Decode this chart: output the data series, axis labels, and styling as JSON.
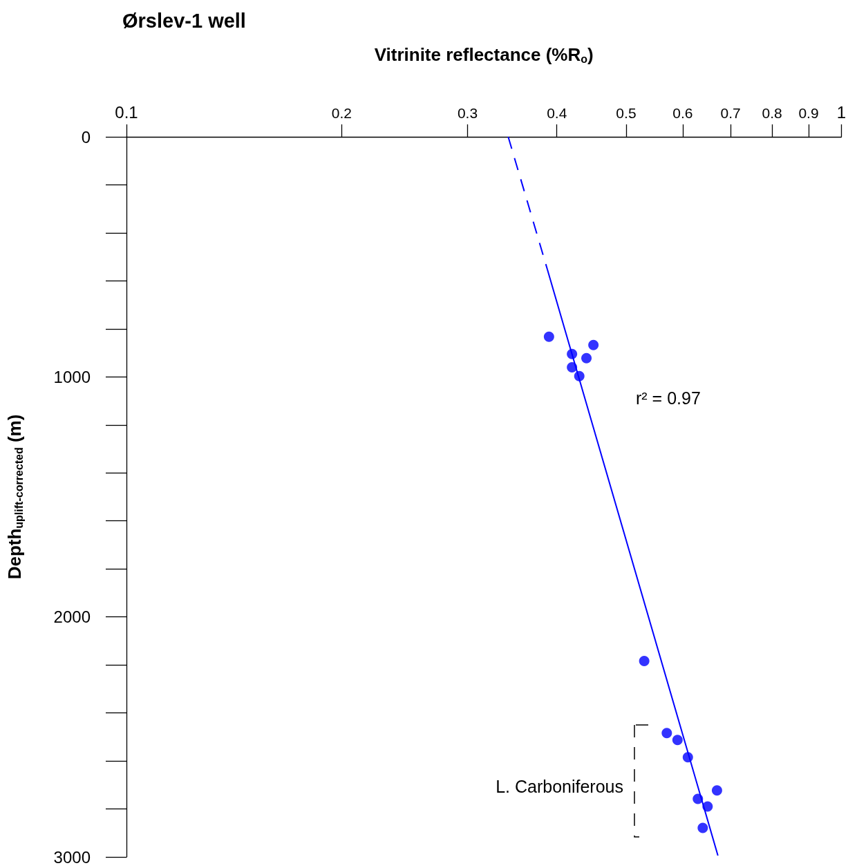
{
  "chart_data": {
    "type": "scatter",
    "title": "Ørslev-1 well",
    "xlabel": "Vitrinite reflectance (%R$_{o}$)",
    "ylabel": "Depth$_{uplift-corrected}$ (m)",
    "log": "x",
    "xlim": [
      0.1,
      1
    ],
    "xticks": [
      0.1,
      0.2,
      0.3,
      0.4,
      0.5,
      0.6,
      0.7,
      0.8,
      0.9,
      1
    ],
    "ylim": [
      3000,
      0
    ],
    "yticks": [
      0,
      1000,
      2000,
      3000
    ],
    "grid": false,
    "series": [
      {
        "type": "scatter",
        "marker": "circle",
        "color": "#0000ff",
        "x": [
          0.39,
          0.42,
          0.44,
          0.45,
          0.42,
          0.43,
          0.53,
          0.57,
          0.59,
          0.61,
          0.63,
          0.65,
          0.67,
          0.64
        ],
        "values": [
          833,
          905,
          922,
          867,
          960,
          997,
          2184,
          2484,
          2513,
          2585,
          2758,
          2790,
          2723,
          2879
        ]
      },
      {
        "type": "line",
        "marker": "none",
        "line_style": "solid",
        "color": "#0000ff",
        "x": [
          0.388,
          0.672
        ],
        "values": [
          553,
          2994
        ]
      },
      {
        "type": "line",
        "marker": "none",
        "line_style": "dashed",
        "color": "#0000ff",
        "x": [
          0.342,
          0.388
        ],
        "values": [
          0,
          553
        ]
      }
    ],
    "annotations": [
      "r² = 0.97",
      "L. Carboniferous"
    ]
  }
}
